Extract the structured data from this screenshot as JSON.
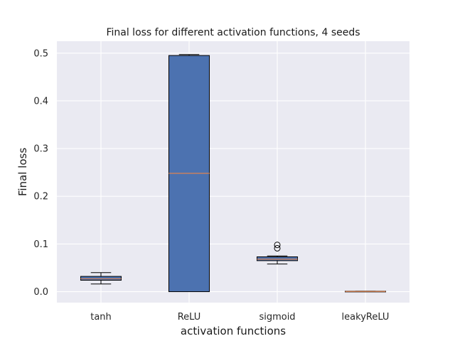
{
  "chart_data": {
    "type": "box",
    "title": "Final loss for different activation functions, 4 seeds",
    "xlabel": "activation functions",
    "ylabel": "Final loss",
    "ylim": [
      -0.023,
      0.525
    ],
    "yticks": [
      0.0,
      0.1,
      0.2,
      0.3,
      0.4,
      0.5
    ],
    "ytick_labels": [
      "0.0",
      "0.1",
      "0.2",
      "0.3",
      "0.4",
      "0.5"
    ],
    "grid": true,
    "categories": [
      "tanh",
      "ReLU",
      "sigmoid",
      "leakyReLU"
    ],
    "boxes": [
      {
        "category": "tanh",
        "whisker_low": 0.016,
        "q1": 0.024,
        "median": 0.027,
        "q3": 0.032,
        "whisker_high": 0.04,
        "outliers": []
      },
      {
        "category": "ReLU",
        "whisker_low": 0.0,
        "q1": 0.0,
        "median": 0.248,
        "q3": 0.495,
        "whisker_high": 0.497,
        "outliers": []
      },
      {
        "category": "sigmoid",
        "whisker_low": 0.058,
        "q1": 0.065,
        "median": 0.068,
        "q3": 0.073,
        "whisker_high": 0.075,
        "outliers": [
          0.091,
          0.098
        ]
      },
      {
        "category": "leakyReLU",
        "whisker_low": 0.0,
        "q1": 0.0,
        "median": 0.0005,
        "q3": 0.001,
        "whisker_high": 0.001,
        "outliers": []
      }
    ],
    "colors": {
      "plot_background": "#eaeaf2",
      "grid": "#ffffff",
      "box_fill": "#4c72b0",
      "box_edge": "#000000",
      "median": "#dd8452"
    }
  }
}
